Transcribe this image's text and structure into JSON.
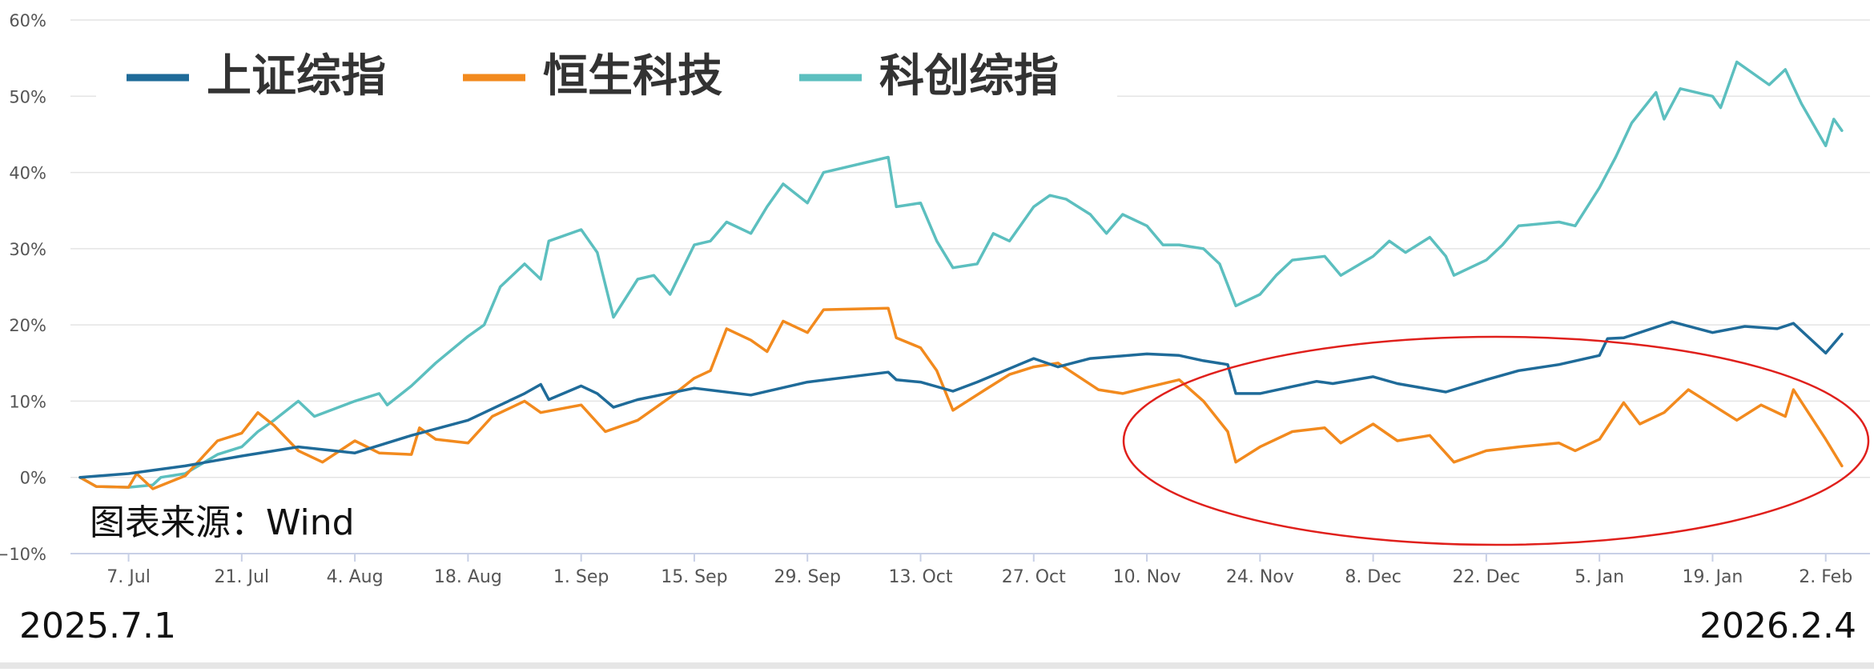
{
  "chart_data": {
    "type": "line",
    "ylim": [
      -10,
      60
    ],
    "yticks": [
      "60%",
      "50%",
      "40%",
      "30%",
      "20%",
      "10%",
      "0%",
      "−10%"
    ],
    "ytick_values": [
      60,
      50,
      40,
      30,
      20,
      10,
      0,
      -10
    ],
    "x_range": [
      "2025-07-01",
      "2026-02-05"
    ],
    "xticks": [
      "7. Jul",
      "21. Jul",
      "4. Aug",
      "18. Aug",
      "1. Sep",
      "15. Sep",
      "29. Sep",
      "13. Oct",
      "27. Oct",
      "10. Nov",
      "24. Nov",
      "8. Dec",
      "22. Dec",
      "5. Jan",
      "19. Jan",
      "2. Feb"
    ],
    "xtick_dates": [
      "2025-07-07",
      "2025-07-21",
      "2025-08-04",
      "2025-08-18",
      "2025-09-01",
      "2025-09-15",
      "2025-09-29",
      "2025-10-13",
      "2025-10-27",
      "2025-11-10",
      "2025-11-24",
      "2025-12-08",
      "2025-12-22",
      "2026-01-05",
      "2026-01-19",
      "2026-02-02"
    ],
    "grid": true,
    "legend_position": "top-left",
    "series": [
      {
        "name": "上证综指",
        "color": "#1f6b99",
        "points": [
          [
            "2025-07-01",
            0.0
          ],
          [
            "2025-07-07",
            0.5
          ],
          [
            "2025-07-14",
            1.5
          ],
          [
            "2025-07-21",
            2.8
          ],
          [
            "2025-07-28",
            4.0
          ],
          [
            "2025-08-04",
            3.2
          ],
          [
            "2025-08-11",
            5.5
          ],
          [
            "2025-08-18",
            7.5
          ],
          [
            "2025-08-25",
            11.0
          ],
          [
            "2025-08-27",
            12.2
          ],
          [
            "2025-08-28",
            10.2
          ],
          [
            "2025-09-01",
            12.0
          ],
          [
            "2025-09-03",
            11.0
          ],
          [
            "2025-09-05",
            9.2
          ],
          [
            "2025-09-08",
            10.2
          ],
          [
            "2025-09-15",
            11.7
          ],
          [
            "2025-09-22",
            10.8
          ],
          [
            "2025-09-29",
            12.5
          ],
          [
            "2025-10-09",
            13.8
          ],
          [
            "2025-10-10",
            12.8
          ],
          [
            "2025-10-13",
            12.5
          ],
          [
            "2025-10-17",
            11.3
          ],
          [
            "2025-10-20",
            12.5
          ],
          [
            "2025-10-27",
            15.6
          ],
          [
            "2025-10-30",
            14.5
          ],
          [
            "2025-11-03",
            15.6
          ],
          [
            "2025-11-10",
            16.2
          ],
          [
            "2025-11-14",
            16.0
          ],
          [
            "2025-11-17",
            15.3
          ],
          [
            "2025-11-20",
            14.8
          ],
          [
            "2025-11-21",
            11.0
          ],
          [
            "2025-11-24",
            11.0
          ],
          [
            "2025-12-01",
            12.6
          ],
          [
            "2025-12-03",
            12.3
          ],
          [
            "2025-12-08",
            13.2
          ],
          [
            "2025-12-11",
            12.3
          ],
          [
            "2025-12-17",
            11.2
          ],
          [
            "2025-12-22",
            12.8
          ],
          [
            "2025-12-26",
            14.0
          ],
          [
            "2025-12-31",
            14.8
          ],
          [
            "2026-01-05",
            16.0
          ],
          [
            "2026-01-06",
            18.2
          ],
          [
            "2026-01-08",
            18.3
          ],
          [
            "2026-01-14",
            20.4
          ],
          [
            "2026-01-19",
            19.0
          ],
          [
            "2026-01-23",
            19.8
          ],
          [
            "2026-01-27",
            19.5
          ],
          [
            "2026-01-29",
            20.2
          ],
          [
            "2026-02-02",
            16.3
          ],
          [
            "2026-02-04",
            18.8
          ]
        ]
      },
      {
        "name": "恒生科技",
        "color": "#f28a1e",
        "points": [
          [
            "2025-07-01",
            0.0
          ],
          [
            "2025-07-03",
            -1.2
          ],
          [
            "2025-07-07",
            -1.3
          ],
          [
            "2025-07-08",
            0.5
          ],
          [
            "2025-07-10",
            -1.5
          ],
          [
            "2025-07-14",
            0.2
          ],
          [
            "2025-07-16",
            2.5
          ],
          [
            "2025-07-18",
            4.8
          ],
          [
            "2025-07-21",
            5.8
          ],
          [
            "2025-07-23",
            8.5
          ],
          [
            "2025-07-25",
            6.8
          ],
          [
            "2025-07-28",
            3.5
          ],
          [
            "2025-07-31",
            2.0
          ],
          [
            "2025-08-04",
            4.8
          ],
          [
            "2025-08-07",
            3.2
          ],
          [
            "2025-08-11",
            3.0
          ],
          [
            "2025-08-12",
            6.5
          ],
          [
            "2025-08-14",
            5.0
          ],
          [
            "2025-08-18",
            4.5
          ],
          [
            "2025-08-21",
            8.0
          ],
          [
            "2025-08-25",
            10.0
          ],
          [
            "2025-08-27",
            8.5
          ],
          [
            "2025-09-01",
            9.5
          ],
          [
            "2025-09-04",
            6.0
          ],
          [
            "2025-09-08",
            7.5
          ],
          [
            "2025-09-12",
            10.5
          ],
          [
            "2025-09-15",
            13.0
          ],
          [
            "2025-09-17",
            14.0
          ],
          [
            "2025-09-19",
            19.5
          ],
          [
            "2025-09-22",
            18.0
          ],
          [
            "2025-09-24",
            16.5
          ],
          [
            "2025-09-26",
            20.5
          ],
          [
            "2025-09-29",
            19.0
          ],
          [
            "2025-10-01",
            22.0
          ],
          [
            "2025-10-09",
            22.2
          ],
          [
            "2025-10-10",
            18.3
          ],
          [
            "2025-10-13",
            17.0
          ],
          [
            "2025-10-15",
            14.0
          ],
          [
            "2025-10-17",
            8.8
          ],
          [
            "2025-10-21",
            11.5
          ],
          [
            "2025-10-24",
            13.5
          ],
          [
            "2025-10-27",
            14.5
          ],
          [
            "2025-10-30",
            15.0
          ],
          [
            "2025-11-04",
            11.5
          ],
          [
            "2025-11-07",
            11.0
          ],
          [
            "2025-11-10",
            11.8
          ],
          [
            "2025-11-14",
            12.8
          ],
          [
            "2025-11-17",
            10.0
          ],
          [
            "2025-11-20",
            6.0
          ],
          [
            "2025-11-21",
            2.0
          ],
          [
            "2025-11-24",
            4.0
          ],
          [
            "2025-11-28",
            6.0
          ],
          [
            "2025-12-02",
            6.5
          ],
          [
            "2025-12-04",
            4.5
          ],
          [
            "2025-12-08",
            7.0
          ],
          [
            "2025-12-11",
            4.8
          ],
          [
            "2025-12-15",
            5.5
          ],
          [
            "2025-12-18",
            2.0
          ],
          [
            "2025-12-22",
            3.5
          ],
          [
            "2025-12-26",
            4.0
          ],
          [
            "2025-12-31",
            4.5
          ],
          [
            "2026-01-02",
            3.5
          ],
          [
            "2026-01-05",
            5.0
          ],
          [
            "2026-01-08",
            9.8
          ],
          [
            "2026-01-10",
            7.0
          ],
          [
            "2026-01-13",
            8.5
          ],
          [
            "2026-01-16",
            11.5
          ],
          [
            "2026-01-19",
            9.5
          ],
          [
            "2026-01-22",
            7.5
          ],
          [
            "2026-01-25",
            9.5
          ],
          [
            "2026-01-28",
            8.0
          ],
          [
            "2026-01-29",
            11.5
          ],
          [
            "2026-02-02",
            5.0
          ],
          [
            "2026-02-04",
            1.5
          ]
        ]
      },
      {
        "name": "科创综指",
        "color": "#5cbfbf",
        "points": [
          [
            "2025-07-01",
            0.0
          ],
          [
            "2025-07-03",
            -1.2
          ],
          [
            "2025-07-07",
            -1.3
          ],
          [
            "2025-07-10",
            -1.0
          ],
          [
            "2025-07-11",
            0.0
          ],
          [
            "2025-07-14",
            0.5
          ],
          [
            "2025-07-18",
            3.0
          ],
          [
            "2025-07-21",
            4.0
          ],
          [
            "2025-07-23",
            6.0
          ],
          [
            "2025-07-25",
            7.5
          ],
          [
            "2025-07-28",
            10.0
          ],
          [
            "2025-07-30",
            8.0
          ],
          [
            "2025-08-04",
            10.0
          ],
          [
            "2025-08-07",
            11.0
          ],
          [
            "2025-08-08",
            9.5
          ],
          [
            "2025-08-11",
            12.0
          ],
          [
            "2025-08-14",
            15.0
          ],
          [
            "2025-08-18",
            18.5
          ],
          [
            "2025-08-20",
            20.0
          ],
          [
            "2025-08-22",
            25.0
          ],
          [
            "2025-08-25",
            28.0
          ],
          [
            "2025-08-27",
            26.0
          ],
          [
            "2025-08-28",
            31.0
          ],
          [
            "2025-09-01",
            32.5
          ],
          [
            "2025-09-03",
            29.5
          ],
          [
            "2025-09-05",
            21.0
          ],
          [
            "2025-09-08",
            26.0
          ],
          [
            "2025-09-10",
            26.5
          ],
          [
            "2025-09-12",
            24.0
          ],
          [
            "2025-09-15",
            30.5
          ],
          [
            "2025-09-17",
            31.0
          ],
          [
            "2025-09-19",
            33.5
          ],
          [
            "2025-09-22",
            32.0
          ],
          [
            "2025-09-24",
            35.5
          ],
          [
            "2025-09-26",
            38.5
          ],
          [
            "2025-09-29",
            36.0
          ],
          [
            "2025-10-01",
            40.0
          ],
          [
            "2025-10-09",
            42.0
          ],
          [
            "2025-10-10",
            35.5
          ],
          [
            "2025-10-13",
            36.0
          ],
          [
            "2025-10-15",
            31.0
          ],
          [
            "2025-10-17",
            27.5
          ],
          [
            "2025-10-20",
            28.0
          ],
          [
            "2025-10-22",
            32.0
          ],
          [
            "2025-10-24",
            31.0
          ],
          [
            "2025-10-27",
            35.5
          ],
          [
            "2025-10-29",
            37.0
          ],
          [
            "2025-10-31",
            36.5
          ],
          [
            "2025-11-03",
            34.5
          ],
          [
            "2025-11-05",
            32.0
          ],
          [
            "2025-11-07",
            34.5
          ],
          [
            "2025-11-10",
            33.0
          ],
          [
            "2025-11-12",
            30.5
          ],
          [
            "2025-11-14",
            30.5
          ],
          [
            "2025-11-17",
            30.0
          ],
          [
            "2025-11-19",
            28.0
          ],
          [
            "2025-11-21",
            22.5
          ],
          [
            "2025-11-24",
            24.0
          ],
          [
            "2025-11-26",
            26.5
          ],
          [
            "2025-11-28",
            28.5
          ],
          [
            "2025-12-02",
            29.0
          ],
          [
            "2025-12-04",
            26.5
          ],
          [
            "2025-12-08",
            29.0
          ],
          [
            "2025-12-10",
            31.0
          ],
          [
            "2025-12-12",
            29.5
          ],
          [
            "2025-12-15",
            31.5
          ],
          [
            "2025-12-17",
            29.0
          ],
          [
            "2025-12-18",
            26.5
          ],
          [
            "2025-12-22",
            28.5
          ],
          [
            "2025-12-24",
            30.5
          ],
          [
            "2025-12-26",
            33.0
          ],
          [
            "2025-12-31",
            33.5
          ],
          [
            "2026-01-02",
            33.0
          ],
          [
            "2026-01-05",
            38.0
          ],
          [
            "2026-01-07",
            42.0
          ],
          [
            "2026-01-09",
            46.5
          ],
          [
            "2026-01-12",
            50.5
          ],
          [
            "2026-01-13",
            47.0
          ],
          [
            "2026-01-15",
            51.0
          ],
          [
            "2026-01-19",
            50.0
          ],
          [
            "2026-01-20",
            48.5
          ],
          [
            "2026-01-22",
            54.5
          ],
          [
            "2026-01-26",
            51.5
          ],
          [
            "2026-01-28",
            53.5
          ],
          [
            "2026-01-30",
            49.0
          ],
          [
            "2026-02-02",
            43.5
          ],
          [
            "2026-02-03",
            47.0
          ],
          [
            "2026-02-04",
            45.5
          ]
        ]
      }
    ]
  },
  "annotation": {
    "source_label": "图表来源：Wind",
    "start_date": "2025.7.1",
    "end_date": "2026.2.4",
    "highlight_ellipse_color": "#e0201c"
  },
  "colors": {
    "grid": "#e4e4e4",
    "axis": "#c8d0e6",
    "tick_text": "#555555"
  }
}
